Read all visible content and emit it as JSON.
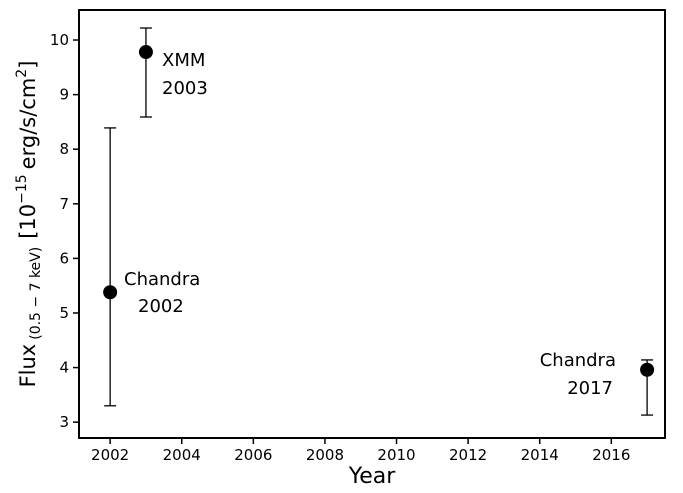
{
  "chart_data": {
    "type": "errorbar",
    "xlabel": "Year",
    "ylabel": [
      "Flux",
      "(0.5 − 7 keV)",
      "[10",
      "−15",
      "erg/s/cm",
      "2",
      "]"
    ],
    "series": [
      {
        "color": "#000000",
        "x": [
          2002,
          2003,
          2017
        ],
        "y": [
          5.38,
          9.78,
          3.96
        ],
        "error_minus": [
          2.08,
          1.19,
          0.83
        ],
        "error_plus": [
          3.01,
          0.44,
          0.18
        ]
      }
    ],
    "annotations": [
      {
        "lines": [
          "Chandra",
          "2002"
        ]
      },
      {
        "lines": [
          "XMM",
          "2003"
        ]
      },
      {
        "lines": [
          "Chandra",
          "2017"
        ]
      }
    ],
    "xlim": [
      2001.13,
      2017.5
    ],
    "xticks": [
      2002,
      2004,
      2006,
      2008,
      2010,
      2012,
      2014,
      2016
    ],
    "ylim": [
      2.71,
      10.55
    ],
    "yticks": [
      3,
      4,
      5,
      6,
      7,
      8,
      9,
      10
    ]
  }
}
